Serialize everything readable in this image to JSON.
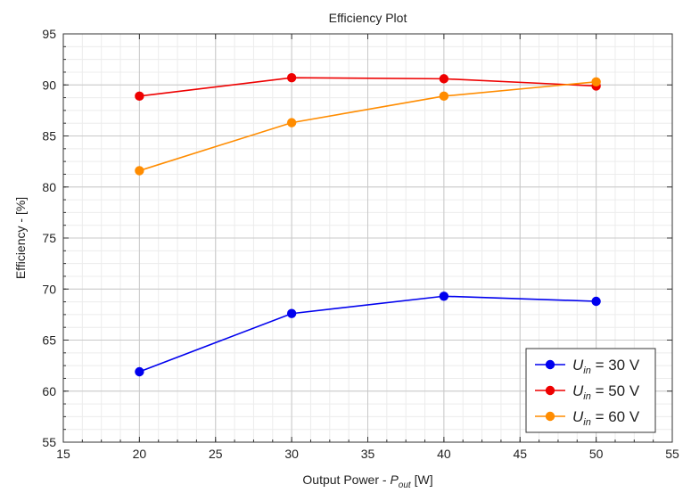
{
  "chart_data": {
    "type": "line",
    "title": "Efficiency Plot",
    "xlabel": {
      "prefix": "Output Power - ",
      "var": "P",
      "sub": "out",
      "suffix": " [W]"
    },
    "ylabel": "Efficiency - [%]",
    "xlim": [
      15,
      55
    ],
    "ylim": [
      55,
      95
    ],
    "xticks": [
      15,
      20,
      25,
      30,
      35,
      40,
      45,
      50,
      55
    ],
    "yticks": [
      55,
      60,
      65,
      70,
      75,
      80,
      85,
      90,
      95
    ],
    "grid": true,
    "legend_position": "bottom-right",
    "x": [
      20,
      30,
      40,
      50
    ],
    "series": [
      {
        "name": "U_in = 30 V",
        "var": "U",
        "sub": "in",
        "value_text": " = 30 V",
        "color": "#0000ee",
        "values": [
          61.9,
          67.6,
          69.3,
          68.8
        ]
      },
      {
        "name": "U_in = 50 V",
        "var": "U",
        "sub": "in",
        "value_text": " = 50 V",
        "color": "#ee0000",
        "values": [
          88.9,
          90.7,
          90.6,
          89.9
        ]
      },
      {
        "name": "U_in = 60 V",
        "var": "U",
        "sub": "in",
        "value_text": " = 60 V",
        "color": "#ff8c00",
        "values": [
          81.6,
          86.3,
          88.9,
          90.3
        ]
      }
    ]
  }
}
